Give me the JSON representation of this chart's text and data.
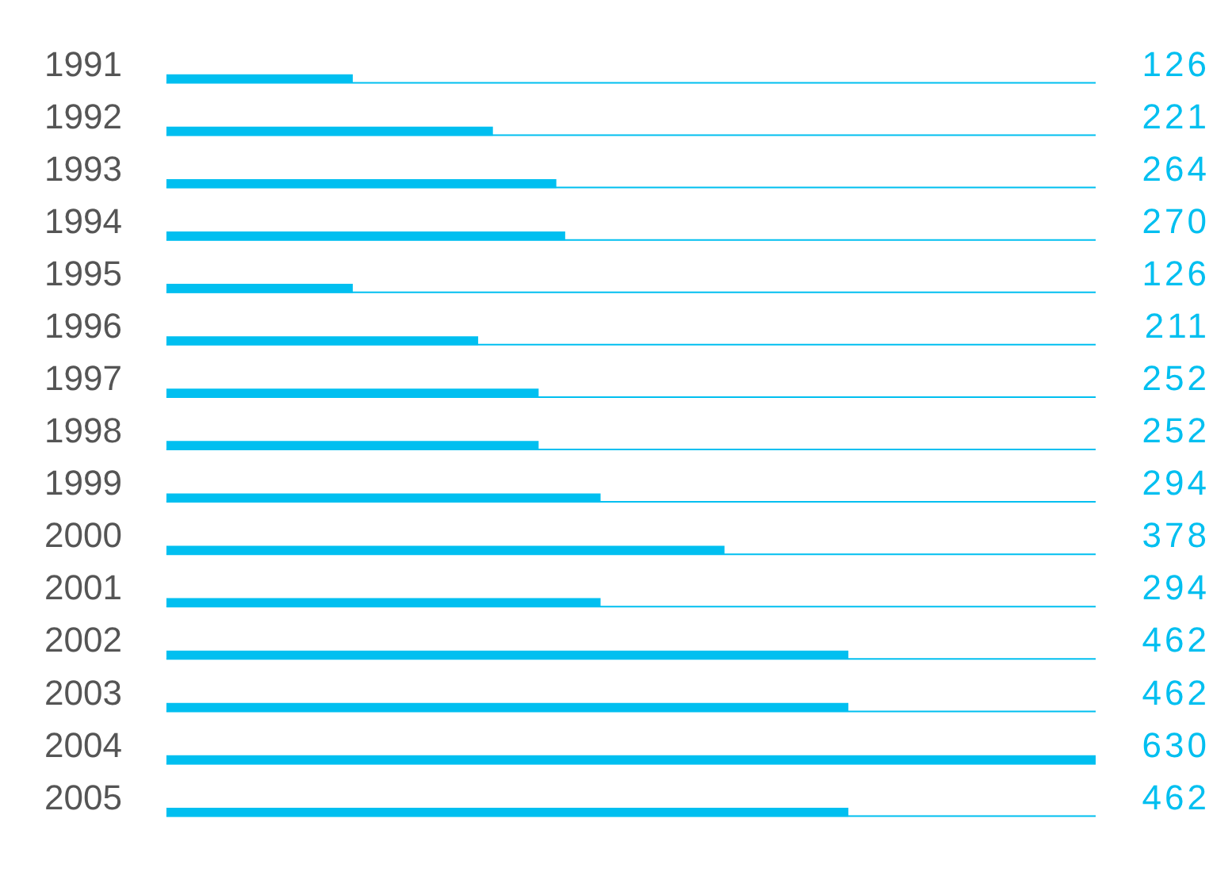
{
  "chart_data": {
    "type": "bar",
    "orientation": "horizontal",
    "categories": [
      "1991",
      "1992",
      "1993",
      "1994",
      "1995",
      "1996",
      "1997",
      "1998",
      "1999",
      "2000",
      "2001",
      "2002",
      "2003",
      "2004",
      "2005"
    ],
    "values": [
      126,
      221,
      264,
      270,
      126,
      211,
      252,
      252,
      294,
      378,
      294,
      462,
      462,
      630,
      462
    ],
    "color": "#00bff0",
    "xlim": [
      0,
      630
    ],
    "data_labels": true,
    "tick_labels": "y",
    "grid": "y",
    "legend": false
  }
}
